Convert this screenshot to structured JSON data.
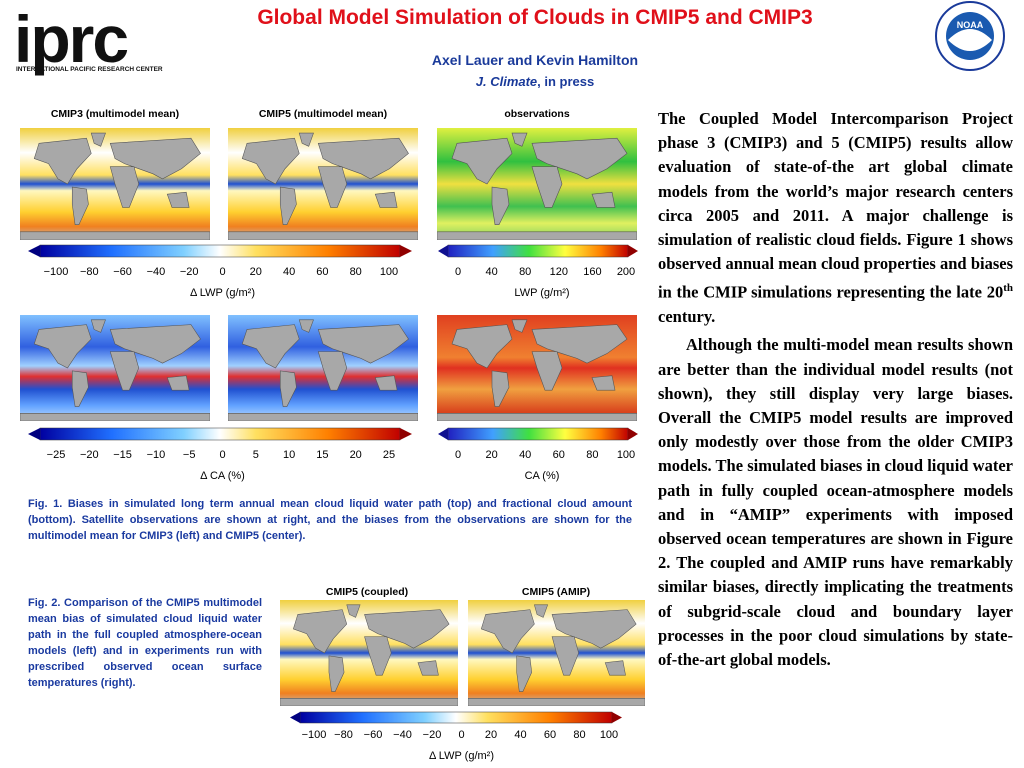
{
  "header": {
    "logo_left": "iprc",
    "logo_left_sub": "INTERNATIONAL PACIFIC RESEARCH CENTER",
    "title": "Global Model Simulation of Clouds in CMIP5 and CMIP3",
    "authors": "Axel Lauer and Kevin Hamilton",
    "journal": "J. Climate",
    "journal_note": ", in press",
    "logo_right": "NOAA"
  },
  "figure1": {
    "panel_titles": [
      "CMIP3 (multimodel mean)",
      "CMIP5 (multimodel mean)",
      "observations"
    ],
    "colorbars": [
      {
        "ticks": [
          "−100",
          "−80",
          "−60",
          "−40",
          "−20",
          "0",
          "20",
          "40",
          "60",
          "80",
          "100"
        ],
        "label": "Δ LWP (g/m²)"
      },
      {
        "ticks": [
          "0",
          "40",
          "80",
          "120",
          "160",
          "200"
        ],
        "label": "LWP (g/m²)"
      },
      {
        "ticks": [
          "−25",
          "−20",
          "−15",
          "−10",
          "−5",
          "0",
          "5",
          "10",
          "15",
          "20",
          "25"
        ],
        "label": "Δ CA (%)"
      },
      {
        "ticks": [
          "0",
          "20",
          "40",
          "60",
          "80",
          "100"
        ],
        "label": "CA (%)"
      }
    ],
    "caption": "Fig. 1. Biases in simulated long term annual mean cloud liquid water path (top) and fractional cloud amount (bottom).  Satellite observations are shown at right, and the biases from the observations are shown for the multimodel mean for CMIP3 (left) and CMIP5 (center)."
  },
  "figure2": {
    "panel_titles": [
      "CMIP5 (coupled)",
      "CMIP5 (AMIP)"
    ],
    "colorbar": {
      "ticks": [
        "−100",
        "−80",
        "−60",
        "−40",
        "−20",
        "0",
        "20",
        "40",
        "60",
        "80",
        "100"
      ],
      "label": "Δ LWP (g/m²)"
    },
    "caption": "Fig. 2. Comparison of the CMIP5 multimodel mean bias of simulated cloud liquid water path in the full coupled atmosphere-ocean models (left) and in experiments run with prescribed observed ocean surface temperatures (right)."
  },
  "body": {
    "paragraph1": [
      "The Coupled Model Intercomparison Project phase 3 (CMIP3) and 5 (CMIP5) results allow evaluation of state-of-the art global climate models from the world’s major research centers circa 2005 and 2011. A major challenge is simulation of realistic cloud fields. Figure 1 shows observed annual mean cloud properties and biases in the CMIP simulations representing the late 20",
      "th",
      " century."
    ],
    "paragraph2": "Although the multi-model mean results shown are better than the individual model results (not shown), they still display very large biases. Overall the CMIP5 model results are improved only modestly over those from the older CMIP3 models. The simulated biases in cloud liquid water path in fully coupled ocean-atmosphere models and in “AMIP” experiments with imposed observed ocean temperatures are shown in Figure 2. The coupled and AMIP runs have remarkably similar biases, directly implicating the treatments of subgrid-scale cloud and boundary layer processes in the poor cloud simulations by state-of-the-art global models."
  }
}
